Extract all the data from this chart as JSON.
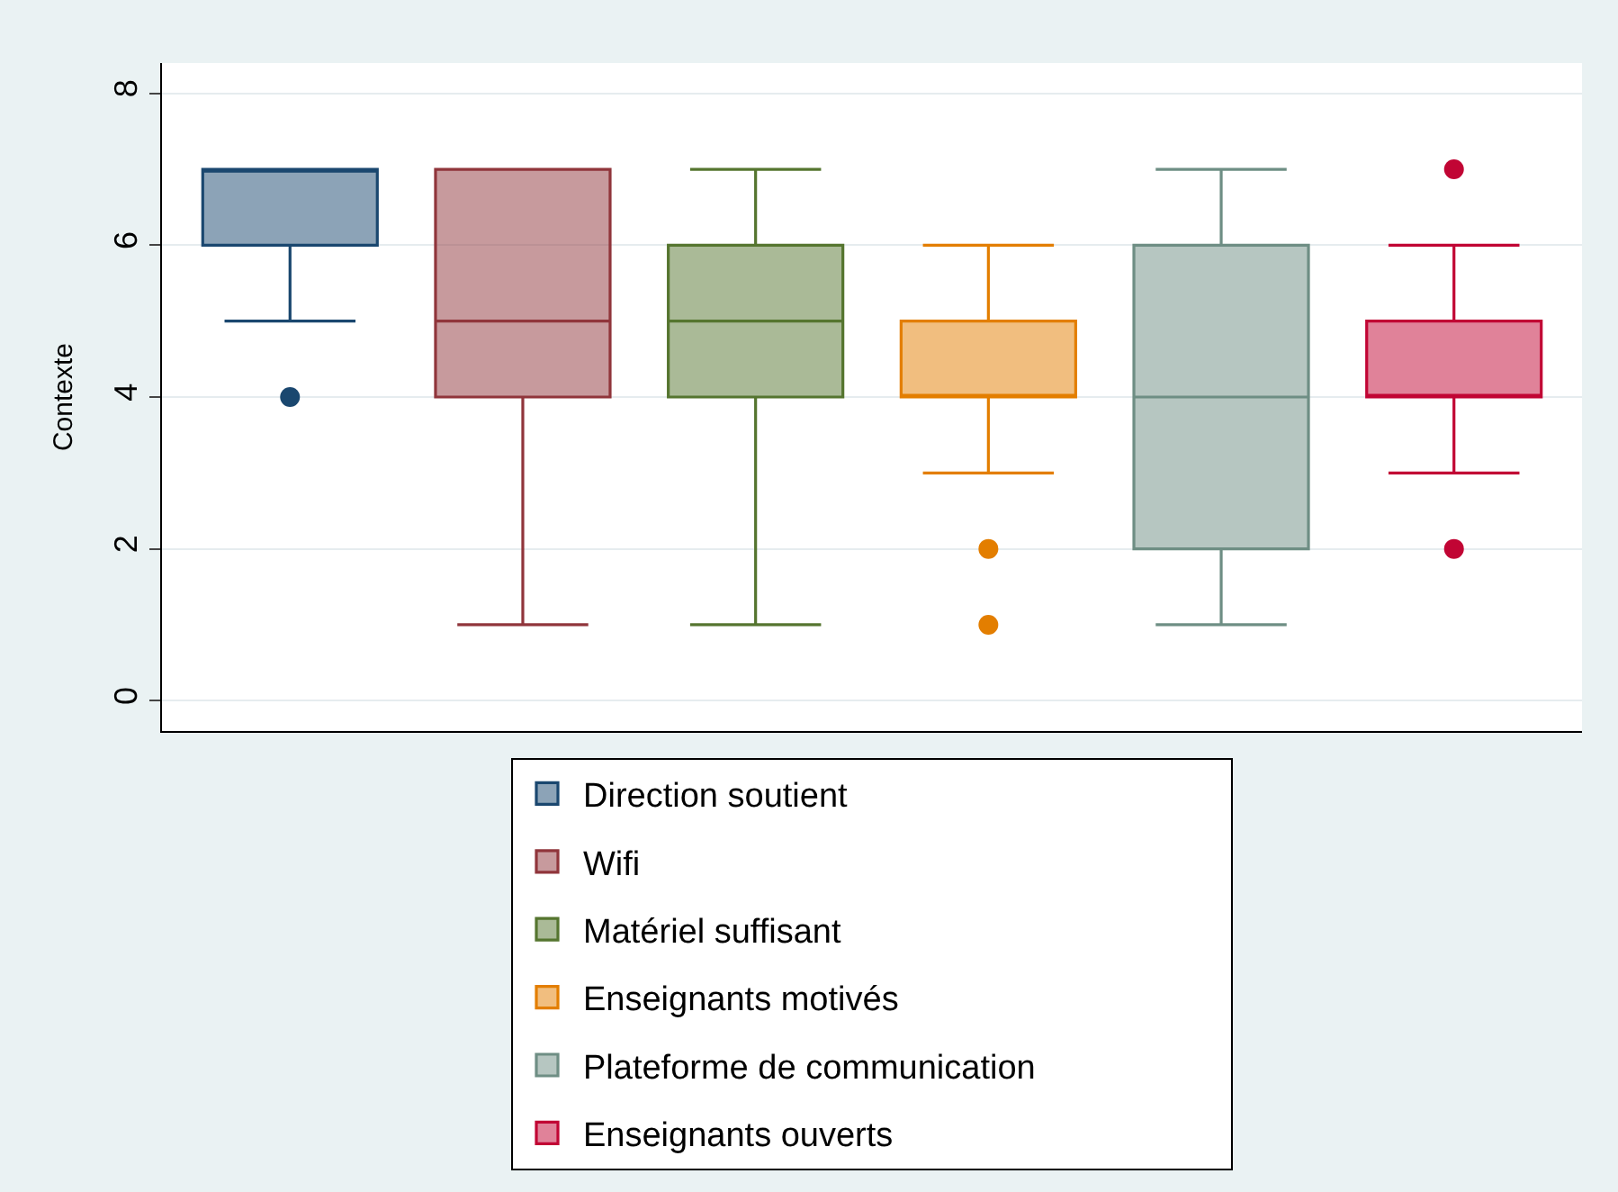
{
  "chart_data": {
    "type": "box",
    "ylabel": "Contexte",
    "categories": [
      null,
      null,
      null,
      null,
      null,
      null
    ],
    "ylim": [
      -0.4,
      8.4
    ],
    "yticks": [
      0,
      2,
      4,
      6,
      8
    ],
    "grid": "y",
    "legend": "bottom",
    "series": [
      {
        "name": "Direction soutient",
        "color": "#1a476f",
        "boxes": [
          {
            "low": 5,
            "q1": 6,
            "median": 7,
            "q3": 7,
            "high": 7,
            "outliers": [
              4
            ]
          },
          null,
          null,
          null,
          null,
          null
        ]
      },
      {
        "name": "Wifi",
        "color": "#90353b",
        "boxes": [
          null,
          {
            "low": 1,
            "q1": 4,
            "median": 5,
            "q3": 7,
            "high": 7
          },
          null,
          null,
          null,
          null
        ]
      },
      {
        "name": "Matériel suffisant",
        "color": "#55752f",
        "boxes": [
          null,
          null,
          {
            "low": 1,
            "q1": 4,
            "median": 5,
            "q3": 6,
            "high": 7
          },
          null,
          null,
          null
        ]
      },
      {
        "name": "Enseignants motivés",
        "color": "#e37e00",
        "boxes": [
          null,
          null,
          null,
          {
            "low": 3,
            "q1": 4,
            "median": 4,
            "q3": 5,
            "high": 6,
            "outliers": [
              2,
              1
            ]
          },
          null,
          null
        ]
      },
      {
        "name": "Plateforme de communication",
        "color": "#6e8e84",
        "boxes": [
          null,
          null,
          null,
          null,
          {
            "low": 1,
            "q1": 2,
            "median": 4,
            "q3": 6,
            "high": 7
          },
          null
        ]
      },
      {
        "name": "Enseignants ouverts",
        "color": "#c10534",
        "boxes": [
          null,
          null,
          null,
          null,
          null,
          {
            "low": 3,
            "q1": 4,
            "median": 4,
            "q3": 5,
            "high": 6,
            "outliers": [
              2,
              7
            ]
          }
        ]
      }
    ]
  }
}
